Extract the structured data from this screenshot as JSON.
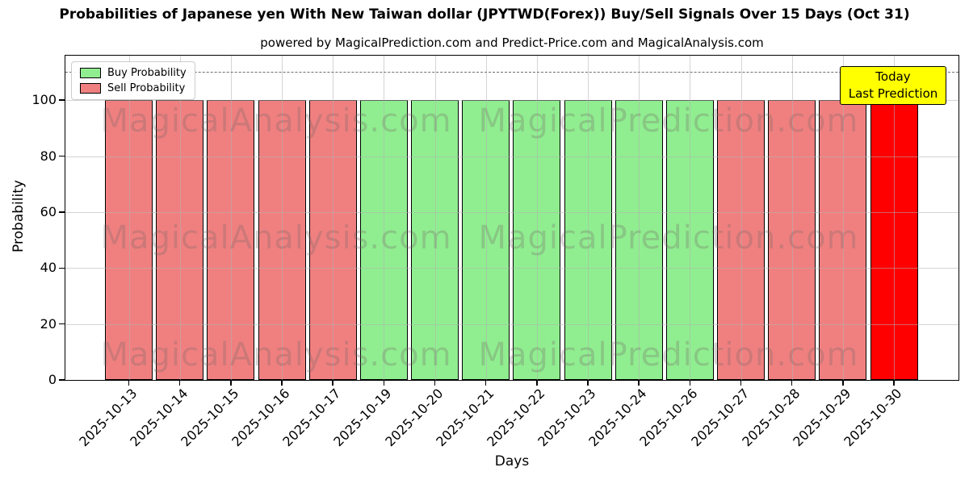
{
  "watermarks": {
    "left": "MagicalAnalysis.com",
    "right": "MagicalPrediction.com"
  },
  "legend": {
    "items": [
      {
        "label": "Buy Probability",
        "color": "#90EE90"
      },
      {
        "label": "Sell Probability",
        "color": "#F08080"
      }
    ]
  },
  "annotation": {
    "lines": [
      "Today",
      "Last Prediction"
    ],
    "facecolor": "#FFFF00",
    "edgecolor": "#000000"
  },
  "colors": {
    "buy": "#90EE90",
    "sell": "#F08080",
    "today": "#FF0000",
    "grid": "#b0b0b0",
    "dashed_line": "#6e6e6e",
    "annotation_bg": "#FFFF00"
  },
  "chart_data": {
    "type": "bar",
    "title": "Probabilities of Japanese yen With New Taiwan dollar (JPYTWD(Forex)) Buy/Sell Signals Over 15 Days (Oct 31)",
    "subtitle": "powered by MagicalPrediction.com and Predict-Price.com and MagicalAnalysis.com",
    "xlabel": "Days",
    "ylabel": "Probability",
    "ylim": [
      0,
      116
    ],
    "yticks": [
      0,
      20,
      40,
      60,
      80,
      100
    ],
    "dashed_line_y": 110,
    "grid": true,
    "legend_position": "upper left",
    "categories": [
      "2025-10-13",
      "2025-10-14",
      "2025-10-15",
      "2025-10-16",
      "2025-10-17",
      "2025-10-19",
      "2025-10-20",
      "2025-10-21",
      "2025-10-22",
      "2025-10-23",
      "2025-10-24",
      "2025-10-26",
      "2025-10-27",
      "2025-10-28",
      "2025-10-29",
      "2025-10-30"
    ],
    "series": [
      {
        "name": "Buy Probability",
        "color": "#90EE90",
        "values": [
          0,
          0,
          0,
          0,
          0,
          100,
          100,
          100,
          100,
          100,
          100,
          100,
          0,
          0,
          0,
          0
        ]
      },
      {
        "name": "Sell Probability",
        "color": "#F08080",
        "values": [
          100,
          100,
          100,
          100,
          100,
          0,
          0,
          0,
          0,
          0,
          0,
          0,
          100,
          100,
          100,
          0
        ]
      },
      {
        "name": "Today Last Prediction (Sell)",
        "color": "#FF0000",
        "values": [
          0,
          0,
          0,
          0,
          0,
          0,
          0,
          0,
          0,
          0,
          0,
          0,
          0,
          0,
          0,
          100
        ]
      }
    ]
  }
}
